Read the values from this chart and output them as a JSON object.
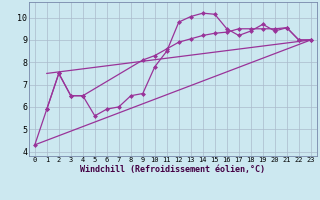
{
  "title": "",
  "xlabel": "Windchill (Refroidissement éolien,°C)",
  "background_color": "#cce8f0",
  "line_color": "#993399",
  "grid_color": "#aabbcc",
  "xlim": [
    -0.5,
    23.5
  ],
  "ylim": [
    3.8,
    10.7
  ],
  "xticks": [
    0,
    1,
    2,
    3,
    4,
    5,
    6,
    7,
    8,
    9,
    10,
    11,
    12,
    13,
    14,
    15,
    16,
    17,
    18,
    19,
    20,
    21,
    22,
    23
  ],
  "yticks": [
    4,
    5,
    6,
    7,
    8,
    9,
    10
  ],
  "series1_x": [
    0,
    1,
    2,
    3,
    4,
    5,
    6,
    7,
    8,
    9,
    10,
    11,
    12,
    13,
    14,
    15,
    16,
    17,
    18,
    19,
    20,
    21,
    22,
    23
  ],
  "series1_y": [
    4.3,
    5.9,
    7.5,
    6.5,
    6.5,
    5.6,
    5.9,
    6.0,
    6.5,
    6.6,
    7.8,
    8.5,
    9.8,
    10.05,
    10.2,
    10.15,
    9.5,
    9.2,
    9.4,
    9.7,
    9.4,
    9.55,
    9.0,
    9.0
  ],
  "series2_x": [
    1,
    2,
    3,
    4,
    9,
    10,
    11,
    12,
    13,
    14,
    15,
    16,
    17,
    18,
    19,
    20,
    21,
    22,
    23
  ],
  "series2_y": [
    5.9,
    7.5,
    6.5,
    6.5,
    8.1,
    8.3,
    8.6,
    8.9,
    9.05,
    9.2,
    9.3,
    9.35,
    9.5,
    9.5,
    9.5,
    9.5,
    9.55,
    9.0,
    9.0
  ],
  "series3_x": [
    0,
    23
  ],
  "series3_y": [
    4.3,
    9.0
  ],
  "series4_x": [
    1,
    23
  ],
  "series4_y": [
    7.5,
    9.0
  ],
  "markersize": 2.5
}
